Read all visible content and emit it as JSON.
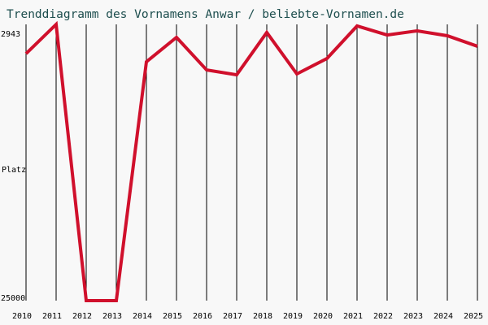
{
  "chart_data": {
    "type": "line",
    "title": "Trenddiagramm des Vornamens Anwar / beliebte-Vornamen.de",
    "y_label": "Platz",
    "x": [
      2010,
      2011,
      2012,
      2013,
      2014,
      2015,
      2016,
      2017,
      2018,
      2019,
      2020,
      2021,
      2022,
      2023,
      2024,
      2025
    ],
    "xlim": [
      2010,
      2025
    ],
    "xticks": [
      2010,
      2011,
      2012,
      2013,
      2014,
      2015,
      2016,
      2017,
      2018,
      2019,
      2020,
      2021,
      2022,
      2023,
      2024,
      2025
    ],
    "series": [
      {
        "color": "#d0102c",
        "values": [
          5280,
          2943,
          25000,
          25000,
          5930,
          3980,
          6580,
          6970,
          3590,
          6900,
          5670,
          3070,
          3790,
          3460,
          3850,
          4690
        ]
      }
    ],
    "ylim": [
      25000,
      2943
    ],
    "yticks": [
      2943,
      25000
    ],
    "grid": true
  }
}
